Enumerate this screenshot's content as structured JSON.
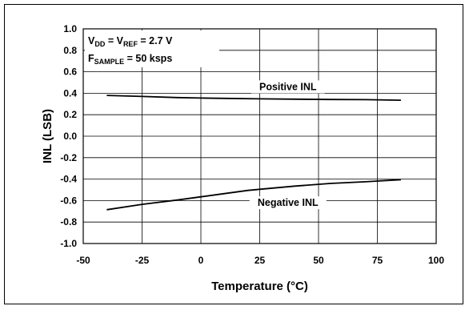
{
  "chart_data": {
    "type": "line",
    "xlabel": "Temperature (°C)",
    "ylabel": "INL (LSB)",
    "xlim": [
      -50,
      100
    ],
    "ylim": [
      -1.0,
      1.0
    ],
    "xticks": [
      -50,
      -25,
      0,
      25,
      50,
      75,
      100
    ],
    "xtick_labels": [
      "-50",
      "-25",
      "0",
      "25",
      "50",
      "75",
      "100"
    ],
    "yticks": [
      1.0,
      0.8,
      0.6,
      0.4,
      0.2,
      0.0,
      -0.2,
      -0.4,
      -0.6,
      -0.8,
      -1.0
    ],
    "ytick_labels": [
      "1.0",
      "0.8",
      "0.6",
      "0.4",
      "0.2",
      "0.0",
      "-0.2",
      "-0.4",
      "-0.6",
      "-0.8",
      "-1.0"
    ],
    "grid": true,
    "annotation": {
      "line1": {
        "v1": "V",
        "s1": "DD",
        "mid": " = V",
        "s2": "REF",
        "tail": " = 2.7 V"
      },
      "line2": {
        "v": "F",
        "s": "SAMPLE",
        "tail": " = 50 ksps"
      }
    },
    "series": [
      {
        "name": "Positive INL",
        "color": "#000000",
        "x": [
          -40,
          -25,
          -10,
          0,
          10,
          25,
          40,
          55,
          70,
          85
        ],
        "y": [
          0.38,
          0.37,
          0.36,
          0.355,
          0.352,
          0.348,
          0.345,
          0.342,
          0.34,
          0.335
        ]
      },
      {
        "name": "Negative INL",
        "color": "#000000",
        "x": [
          -40,
          -25,
          -10,
          0,
          10,
          20,
          25,
          40,
          55,
          70,
          85
        ],
        "y": [
          -0.685,
          -0.635,
          -0.595,
          -0.565,
          -0.535,
          -0.505,
          -0.495,
          -0.465,
          -0.44,
          -0.425,
          -0.405
        ]
      }
    ]
  }
}
